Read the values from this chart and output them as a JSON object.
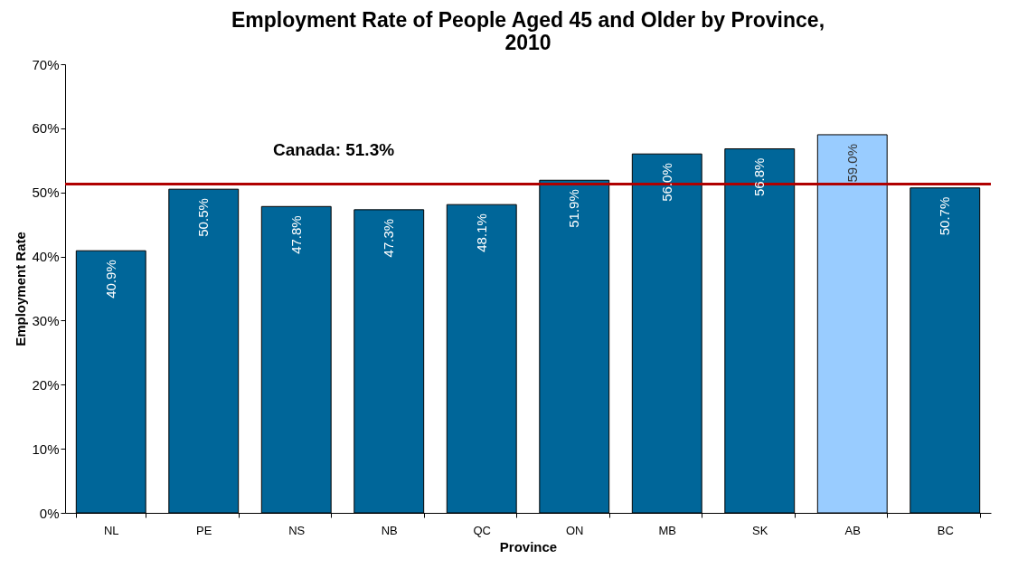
{
  "chart_data": {
    "type": "bar",
    "title": [
      "Employment Rate of  People Aged 45 and Older by Province,",
      "2010"
    ],
    "xlabel": "Province",
    "ylabel": "Employment Rate",
    "categories": [
      "NL",
      "PE",
      "NS",
      "NB",
      "QC",
      "ON",
      "MB",
      "SK",
      "AB",
      "BC"
    ],
    "values": [
      40.9,
      50.5,
      47.8,
      47.3,
      48.1,
      51.9,
      56.0,
      56.8,
      59.0,
      50.7
    ],
    "colors": [
      "#006699",
      "#006699",
      "#006699",
      "#006699",
      "#006699",
      "#006699",
      "#006699",
      "#006699",
      "#99ccff",
      "#006699"
    ],
    "value_labels": [
      "40.9%",
      "50.5%",
      "47.8%",
      "47.3%",
      "48.1%",
      "51.9%",
      "56.0%",
      "56.8%",
      "59.0%",
      "50.7%"
    ],
    "ylim": [
      0,
      70
    ],
    "yticks": [
      {
        "value": 0,
        "label": "0%"
      },
      {
        "value": 10,
        "label": "10%"
      },
      {
        "value": 20,
        "label": "20%"
      },
      {
        "value": 30,
        "label": "30%"
      },
      {
        "value": 40,
        "label": "40%"
      },
      {
        "value": 50,
        "label": "50%"
      },
      {
        "value": 60,
        "label": "60%"
      },
      {
        "value": 70,
        "label": "70%"
      }
    ],
    "ref_lines": [
      {
        "axis": "y",
        "value": 51.3,
        "label": "Canada: 51.3%",
        "color": "#b00000"
      }
    ],
    "grid": false
  }
}
